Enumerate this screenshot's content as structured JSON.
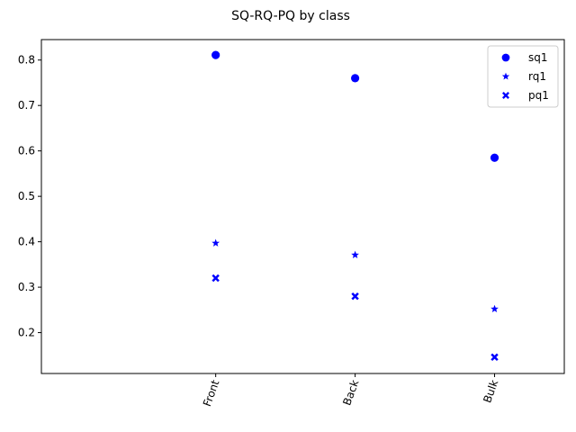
{
  "chart_data": {
    "type": "scatter",
    "title": "SQ-RQ-PQ by class",
    "categories": [
      "Front",
      "Back",
      "Bulk"
    ],
    "ylim": [
      0.11,
      0.845
    ],
    "yticks": [
      "0.2",
      "0.3",
      "0.4",
      "0.5",
      "0.6",
      "0.7",
      "0.8"
    ],
    "grid": false,
    "legend_position": "top-right",
    "color": "#0000ff",
    "series": [
      {
        "name": "sq1",
        "marker": "circle",
        "values": [
          0.811,
          0.76,
          0.585
        ]
      },
      {
        "name": "rq1",
        "marker": "star",
        "values": [
          0.397,
          0.371,
          0.252
        ]
      },
      {
        "name": "pq1",
        "marker": "x",
        "values": [
          0.32,
          0.28,
          0.146
        ]
      }
    ]
  }
}
